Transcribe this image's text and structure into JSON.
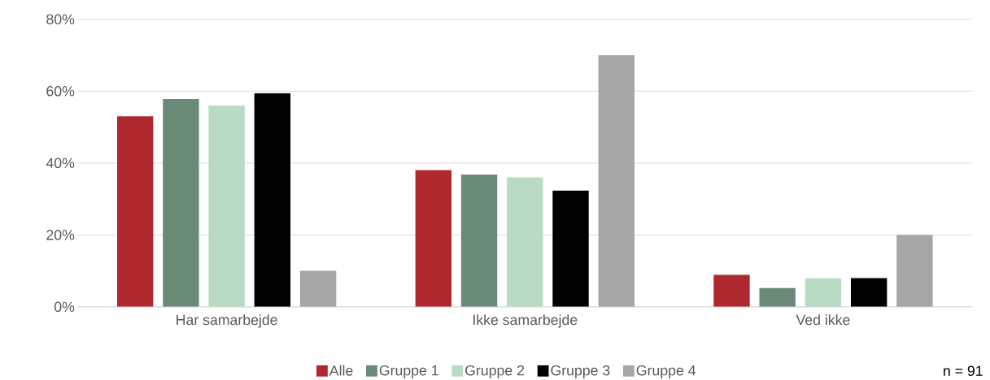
{
  "chart_data": {
    "type": "bar",
    "categories": [
      "Har samarbejde",
      "Ikke samarbejde",
      "Ved ikke"
    ],
    "series": [
      {
        "name": "Alle",
        "color": "#b0282f",
        "values": [
          53,
          38,
          8.9
        ]
      },
      {
        "name": "Gruppe 1",
        "color": "#6a8a78",
        "values": [
          57.8,
          36.8,
          5.2
        ]
      },
      {
        "name": "Gruppe 2",
        "color": "#b9dbc3",
        "values": [
          56,
          36,
          7.9
        ]
      },
      {
        "name": "Gruppe 3",
        "color": "#000000",
        "values": [
          59.4,
          32.3,
          8
        ]
      },
      {
        "name": "Gruppe 4",
        "color": "#a6a6a6",
        "values": [
          10,
          70,
          20
        ]
      }
    ],
    "ylim": [
      0,
      80
    ],
    "yticks": [
      {
        "value": 0,
        "label": "0%"
      },
      {
        "value": 20,
        "label": "20%"
      },
      {
        "value": 40,
        "label": "40%"
      },
      {
        "value": 60,
        "label": "60%"
      },
      {
        "value": 80,
        "label": "80%"
      }
    ],
    "grid": "y",
    "legend": "bottom",
    "annotations": [
      "n = 91"
    ]
  }
}
